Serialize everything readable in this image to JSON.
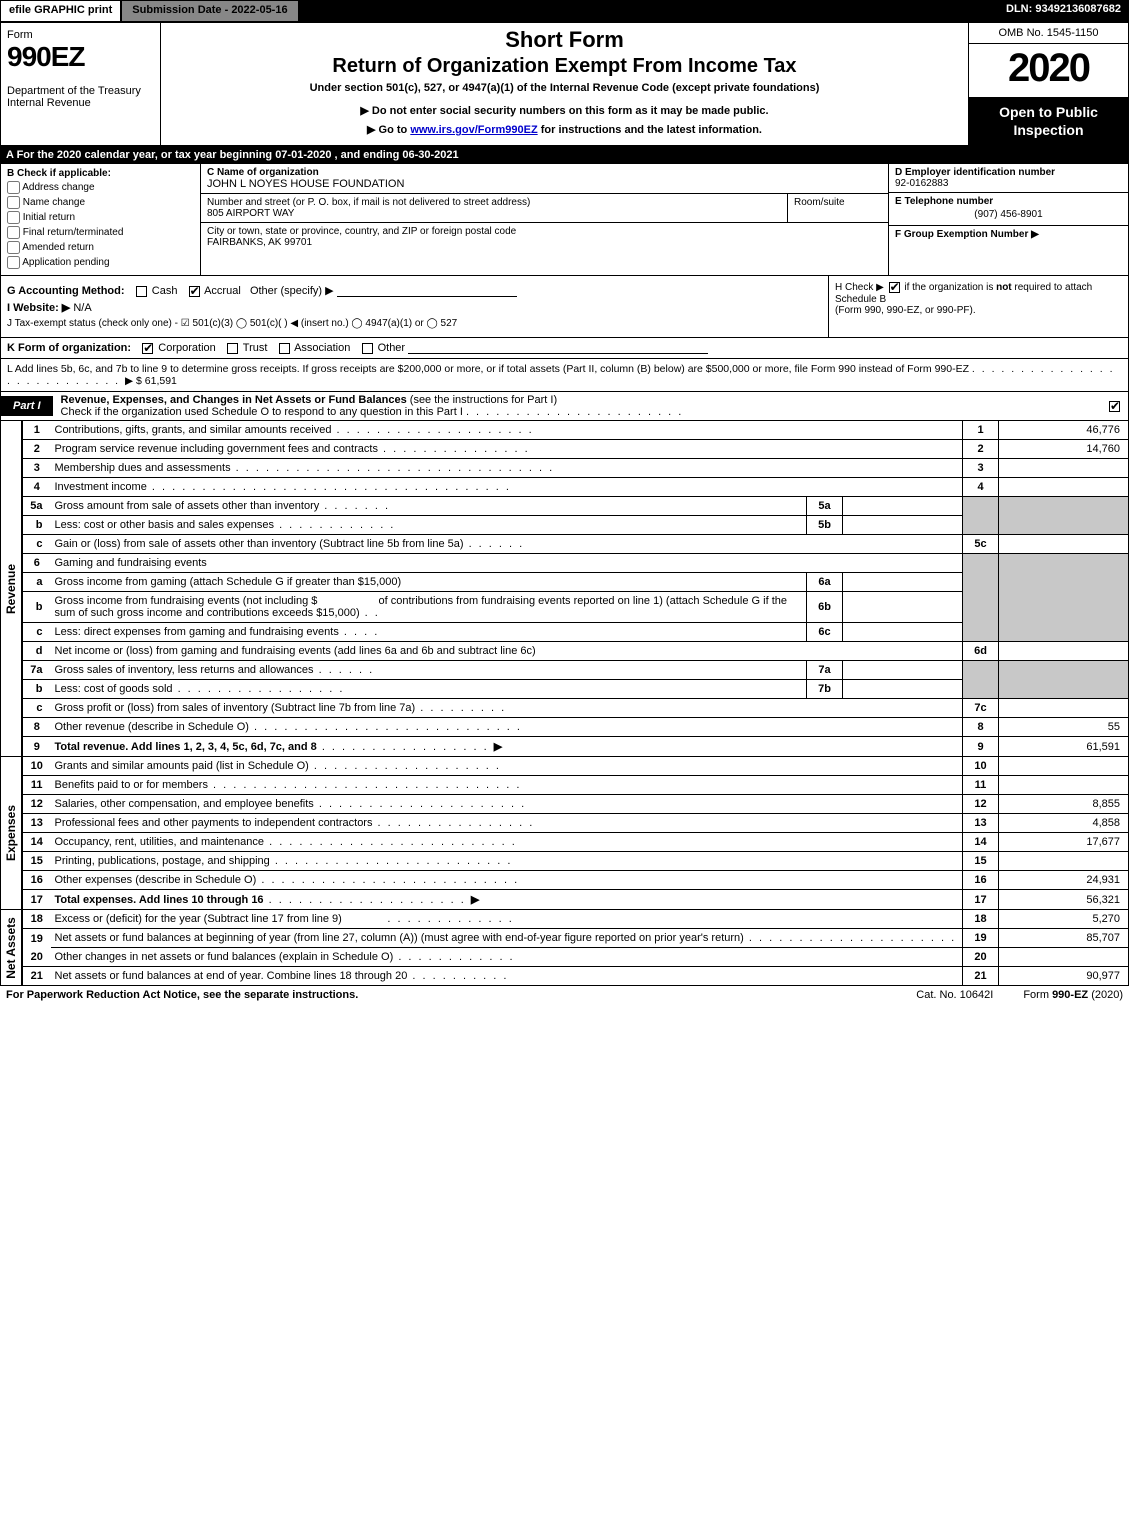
{
  "topbar": {
    "efile": "efile GRAPHIC print",
    "submission": "Submission Date - 2022-05-16",
    "dln": "DLN: 93492136087682"
  },
  "header": {
    "form_word": "Form",
    "form_no": "990EZ",
    "dept1": "Department of the Treasury",
    "dept2": "Internal Revenue",
    "title1": "Short Form",
    "title2": "Return of Organization Exempt From Income Tax",
    "under": "Under section 501(c), 527, or 4947(a)(1) of the Internal Revenue Code (except private foundations)",
    "note": "▶ Do not enter social security numbers on this form as it may be made public.",
    "goto_pre": "▶ Go to ",
    "goto_link": "www.irs.gov/Form990EZ",
    "goto_post": " for instructions and the latest information.",
    "omb": "OMB No. 1545-1150",
    "year": "2020",
    "open": "Open to Public Inspection"
  },
  "calyear": "A For the 2020 calendar year, or tax year beginning 07-01-2020 , and ending 06-30-2021",
  "boxB": {
    "title": "B  Check if applicable:",
    "opts": [
      "Address change",
      "Name change",
      "Initial return",
      "Final return/terminated",
      "Amended return",
      "Application pending"
    ]
  },
  "boxC": {
    "label": "C Name of organization",
    "value": "JOHN L NOYES HOUSE FOUNDATION",
    "street_label": "Number and street (or P. O. box, if mail is not delivered to street address)",
    "street_value": "805 AIRPORT WAY",
    "room_label": "Room/suite",
    "city_label": "City or town, state or province, country, and ZIP or foreign postal code",
    "city_value": "FAIRBANKS, AK  99701"
  },
  "boxD": {
    "label": "D Employer identification number",
    "value": "92-0162883"
  },
  "boxE": {
    "label": "E Telephone number",
    "value": "(907) 456-8901"
  },
  "boxF": {
    "label": "F Group Exemption Number   ▶"
  },
  "rowG": {
    "label": "G Accounting Method:",
    "cash": "Cash",
    "accrual": "Accrual",
    "other": "Other (specify) ▶"
  },
  "rowH": {
    "text1": "H  Check ▶ ",
    "text2": " if the organization is ",
    "not": "not",
    "text3": " required to attach Schedule B",
    "text4": "(Form 990, 990-EZ, or 990-PF)."
  },
  "rowI": {
    "label": "I Website: ▶",
    "value": "N/A"
  },
  "rowJ": "J Tax-exempt status (check only one) - ☑ 501(c)(3)  ◯ 501(c)(  ) ◀ (insert no.)  ◯ 4947(a)(1) or  ◯ 527",
  "rowK": {
    "label": "K Form of organization:",
    "corp": "Corporation",
    "trust": "Trust",
    "assoc": "Association",
    "other": "Other"
  },
  "rowL": {
    "text": "L Add lines 5b, 6c, and 7b to line 9 to determine gross receipts. If gross receipts are $200,000 or more, or if total assets (Part II, column (B) below) are $500,000 or more, file Form 990 instead of Form 990-EZ",
    "amount": "▶ $ 61,591"
  },
  "part1": {
    "tab": "Part I",
    "title": "Revenue, Expenses, and Changes in Net Assets or Fund Balances",
    "sub": " (see the instructions for Part I)",
    "check_line": "Check if the organization used Schedule O to respond to any question in this Part I"
  },
  "sections": {
    "revenue": "Revenue",
    "expenses": "Expenses",
    "netassets": "Net Assets"
  },
  "lines": {
    "l1": {
      "no": "1",
      "desc": "Contributions, gifts, grants, and similar amounts received",
      "rnum": "1",
      "val": "46,776"
    },
    "l2": {
      "no": "2",
      "desc": "Program service revenue including government fees and contracts",
      "rnum": "2",
      "val": "14,760"
    },
    "l3": {
      "no": "3",
      "desc": "Membership dues and assessments",
      "rnum": "3",
      "val": ""
    },
    "l4": {
      "no": "4",
      "desc": "Investment income",
      "rnum": "4",
      "val": ""
    },
    "l5a": {
      "no": "5a",
      "desc": "Gross amount from sale of assets other than inventory",
      "inlbl": "5a"
    },
    "l5b": {
      "no": "b",
      "desc": "Less: cost or other basis and sales expenses",
      "inlbl": "5b"
    },
    "l5c": {
      "no": "c",
      "desc": "Gain or (loss) from sale of assets other than inventory (Subtract line 5b from line 5a)",
      "rnum": "5c",
      "val": ""
    },
    "l6": {
      "no": "6",
      "desc": "Gaming and fundraising events"
    },
    "l6a": {
      "no": "a",
      "desc": "Gross income from gaming (attach Schedule G if greater than $15,000)",
      "inlbl": "6a"
    },
    "l6b": {
      "no": "b",
      "desc1": "Gross income from fundraising events (not including $",
      "desc2": "of contributions from fundraising events reported on line 1) (attach Schedule G if the sum of such gross income and contributions exceeds $15,000)",
      "inlbl": "6b"
    },
    "l6c": {
      "no": "c",
      "desc": "Less: direct expenses from gaming and fundraising events",
      "inlbl": "6c"
    },
    "l6d": {
      "no": "d",
      "desc": "Net income or (loss) from gaming and fundraising events (add lines 6a and 6b and subtract line 6c)",
      "rnum": "6d",
      "val": ""
    },
    "l7a": {
      "no": "7a",
      "desc": "Gross sales of inventory, less returns and allowances",
      "inlbl": "7a"
    },
    "l7b": {
      "no": "b",
      "desc": "Less: cost of goods sold",
      "inlbl": "7b"
    },
    "l7c": {
      "no": "c",
      "desc": "Gross profit or (loss) from sales of inventory (Subtract line 7b from line 7a)",
      "rnum": "7c",
      "val": ""
    },
    "l8": {
      "no": "8",
      "desc": "Other revenue (describe in Schedule O)",
      "rnum": "8",
      "val": "55"
    },
    "l9": {
      "no": "9",
      "desc": "Total revenue. Add lines 1, 2, 3, 4, 5c, 6d, 7c, and 8",
      "rnum": "9",
      "val": "61,591",
      "bold": true
    },
    "l10": {
      "no": "10",
      "desc": "Grants and similar amounts paid (list in Schedule O)",
      "rnum": "10",
      "val": ""
    },
    "l11": {
      "no": "11",
      "desc": "Benefits paid to or for members",
      "rnum": "11",
      "val": ""
    },
    "l12": {
      "no": "12",
      "desc": "Salaries, other compensation, and employee benefits",
      "rnum": "12",
      "val": "8,855"
    },
    "l13": {
      "no": "13",
      "desc": "Professional fees and other payments to independent contractors",
      "rnum": "13",
      "val": "4,858"
    },
    "l14": {
      "no": "14",
      "desc": "Occupancy, rent, utilities, and maintenance",
      "rnum": "14",
      "val": "17,677"
    },
    "l15": {
      "no": "15",
      "desc": "Printing, publications, postage, and shipping",
      "rnum": "15",
      "val": ""
    },
    "l16": {
      "no": "16",
      "desc": "Other expenses (describe in Schedule O)",
      "rnum": "16",
      "val": "24,931"
    },
    "l17": {
      "no": "17",
      "desc": "Total expenses. Add lines 10 through 16",
      "rnum": "17",
      "val": "56,321",
      "bold": true
    },
    "l18": {
      "no": "18",
      "desc": "Excess or (deficit) for the year (Subtract line 17 from line 9)",
      "rnum": "18",
      "val": "5,270"
    },
    "l19": {
      "no": "19",
      "desc": "Net assets or fund balances at beginning of year (from line 27, column (A)) (must agree with end-of-year figure reported on prior year's return)",
      "rnum": "19",
      "val": "85,707"
    },
    "l20": {
      "no": "20",
      "desc": "Other changes in net assets or fund balances (explain in Schedule O)",
      "rnum": "20",
      "val": ""
    },
    "l21": {
      "no": "21",
      "desc": "Net assets or fund balances at end of year. Combine lines 18 through 20",
      "rnum": "21",
      "val": "90,977"
    }
  },
  "footer": {
    "left": "For Paperwork Reduction Act Notice, see the separate instructions.",
    "center": "Cat. No. 10642I",
    "right_pre": "Form ",
    "right_bold": "990-EZ",
    "right_post": " (2020)"
  },
  "colors": {
    "black": "#000000",
    "grey_header": "#878787",
    "shade": "#c8c8c8",
    "link": "#0000cc"
  }
}
